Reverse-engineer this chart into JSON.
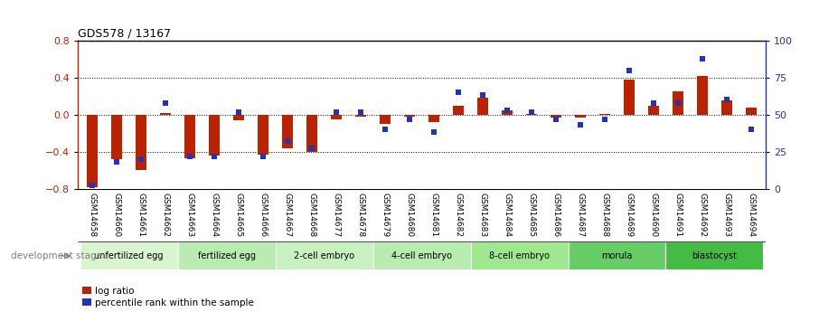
{
  "title": "GDS578 / 13167",
  "samples": [
    "GSM14658",
    "GSM14660",
    "GSM14661",
    "GSM14662",
    "GSM14663",
    "GSM14664",
    "GSM14665",
    "GSM14666",
    "GSM14667",
    "GSM14668",
    "GSM14677",
    "GSM14678",
    "GSM14679",
    "GSM14680",
    "GSM14681",
    "GSM14682",
    "GSM14683",
    "GSM14684",
    "GSM14685",
    "GSM14686",
    "GSM14687",
    "GSM14688",
    "GSM14689",
    "GSM14690",
    "GSM14691",
    "GSM14692",
    "GSM14693",
    "GSM14694"
  ],
  "log_ratio": [
    -0.78,
    -0.48,
    -0.6,
    0.02,
    -0.47,
    -0.44,
    -0.06,
    -0.43,
    -0.36,
    -0.4,
    -0.05,
    -0.02,
    -0.1,
    -0.02,
    -0.08,
    0.1,
    0.18,
    0.05,
    0.01,
    -0.03,
    -0.03,
    0.01,
    0.38,
    0.1,
    0.25,
    0.42,
    0.15,
    0.08
  ],
  "percentile": [
    2,
    18,
    20,
    58,
    22,
    22,
    52,
    22,
    32,
    27,
    52,
    52,
    40,
    47,
    38,
    65,
    63,
    53,
    52,
    47,
    43,
    47,
    80,
    58,
    58,
    88,
    60,
    40
  ],
  "stages": [
    {
      "label": "unfertilized egg",
      "start": 0,
      "end": 4,
      "color": "#d8f5d0"
    },
    {
      "label": "fertilized egg",
      "start": 4,
      "end": 8,
      "color": "#b8ecb0"
    },
    {
      "label": "2-cell embryo",
      "start": 8,
      "end": 12,
      "color": "#c8f0c0"
    },
    {
      "label": "4-cell embryo",
      "start": 12,
      "end": 16,
      "color": "#b8ecb0"
    },
    {
      "label": "8-cell embryo",
      "start": 16,
      "end": 20,
      "color": "#a0e890"
    },
    {
      "label": "morula",
      "start": 20,
      "end": 24,
      "color": "#66cc66"
    },
    {
      "label": "blastocyst",
      "start": 24,
      "end": 28,
      "color": "#44bb44"
    }
  ],
  "bar_color": "#bb2200",
  "dot_color": "#2233bb",
  "ylim_left": [
    -0.8,
    0.8
  ],
  "ylim_right": [
    0,
    100
  ],
  "yticks_left": [
    -0.8,
    -0.4,
    0.0,
    0.4,
    0.8
  ],
  "yticks_right": [
    0,
    25,
    50,
    75,
    100
  ],
  "background_color": "#ffffff",
  "xtick_bg": "#cccccc",
  "legend_log_ratio": "log ratio",
  "legend_percentile": "percentile rank within the sample",
  "dev_stage_label": "development stage"
}
